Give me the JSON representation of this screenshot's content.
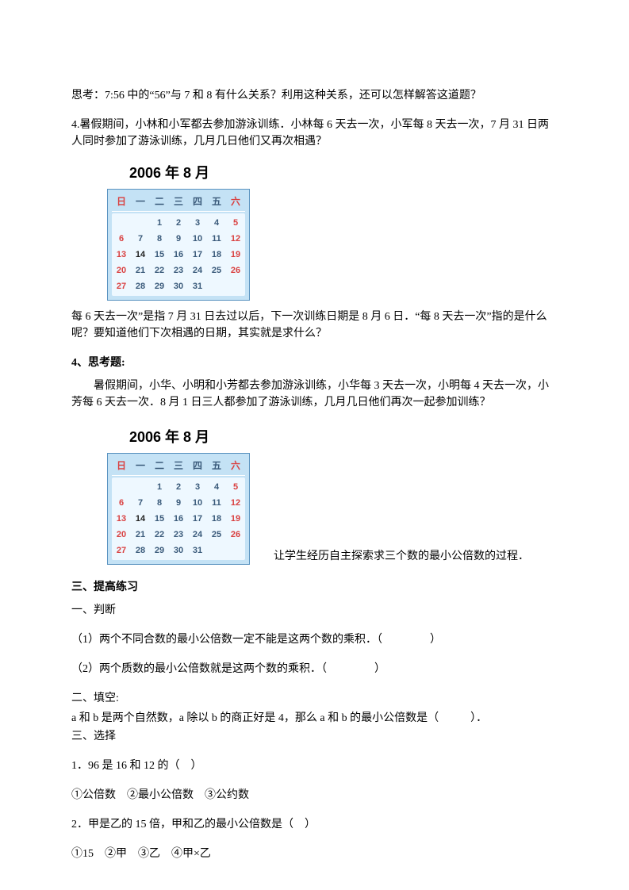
{
  "think": "思考：7:56 中的“56”与 7 和 8 有什么关系？利用这种关系，还可以怎样解答这道题？",
  "q4": "4.暑假期间，小林和小军都去参加游泳训练．小林每 6 天去一次，小军每 8 天去一次，7 月 31 日两人同时参加了游泳训练，几月几日他们又再次相遇？",
  "calendar": {
    "title": "2006 年 8 月",
    "headers": [
      "日",
      "一",
      "二",
      "三",
      "四",
      "五",
      "六"
    ],
    "rows": [
      [
        "",
        "",
        "1",
        "2",
        "3",
        "4",
        "5"
      ],
      [
        "6",
        "7",
        "8",
        "9",
        "10",
        "11",
        "12"
      ],
      [
        "13",
        "14",
        "15",
        "16",
        "17",
        "18",
        "19"
      ],
      [
        "20",
        "21",
        "22",
        "23",
        "24",
        "25",
        "26"
      ],
      [
        "27",
        "28",
        "29",
        "30",
        "31",
        "",
        ""
      ]
    ],
    "red_cols": [
      0,
      6
    ],
    "bold_day": "14"
  },
  "explain1": "每 6 天去一次”是指 7 月 31 日去过以后，下一次训练日期是 8 月 6 日．“每 8 天去一次”指的是什么呢？要知道他们下次相遇的日期，其实就是求什么？",
  "think_title": "4、思考题:",
  "think_body": "暑假期间，小华、小明和小芳都去参加游泳训练，小华每 3 天去一次，小明每 4 天去一次，小芳每 6 天去一次．8 月 1 日三人都参加了游泳训练，几月几日他们再次一起参加训练？",
  "after_cal": "让学生经历自主探索求三个数的最小公倍数的过程．",
  "section3": "三、提高练习",
  "judge_title": "一、判断",
  "judge1": "（1）两个不同合数的最小公倍数一定不能是这两个数的乘积．（",
  "judge1_end": "）",
  "judge2": "（2）两个质数的最小公倍数就是这两个数的乘积．（",
  "judge2_end": "）",
  "fill_title": "二、填空:",
  "fill1": "a 和 b 是两个自然数，a 除以 b 的商正好是 4，那么 a 和 b 的最小公倍数是（",
  "fill1_end": "）．",
  "choice_title": "三、选择",
  "c1": "1．96 是 16 和 12 的（　）",
  "c1opts": "①公倍数　②最小公倍数　③公约数",
  "c2": "2．甲是乙的 15 倍，甲和乙的最小公倍数是（　）",
  "c2opts": "①15　②甲　③乙　④甲×乙"
}
